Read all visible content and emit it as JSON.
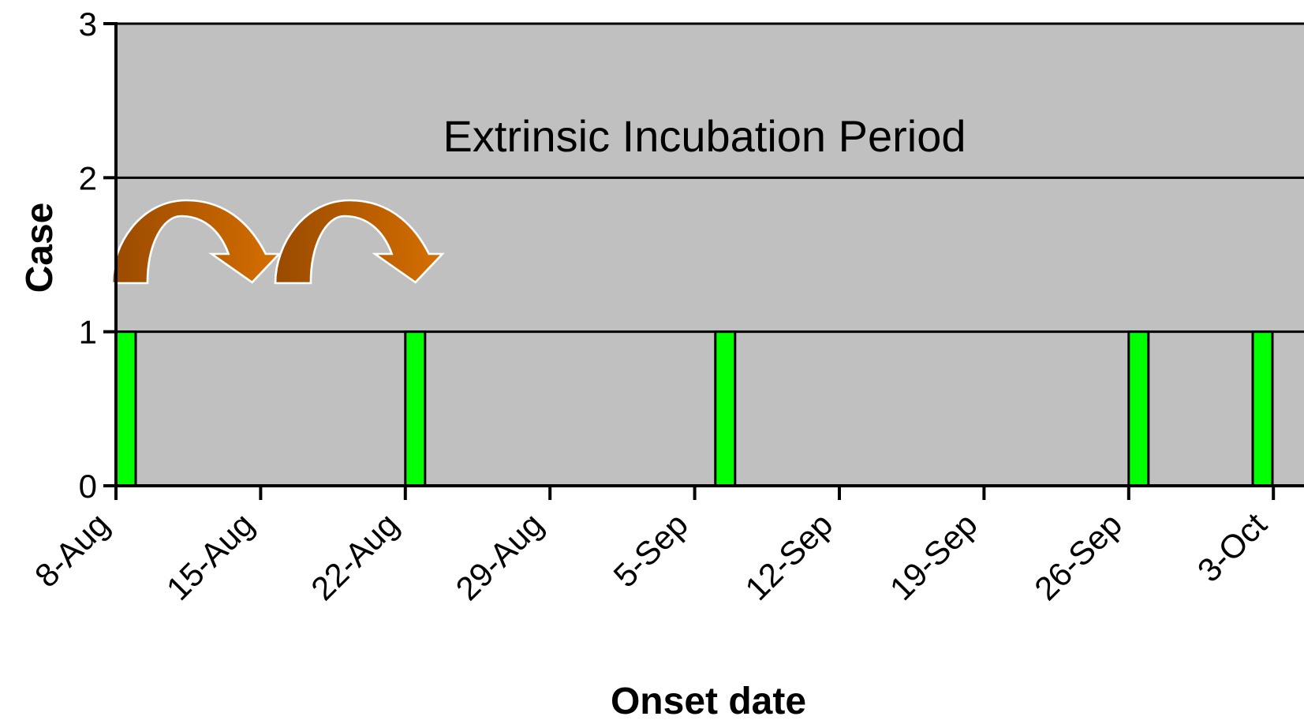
{
  "chart_data": {
    "type": "bar",
    "title": "",
    "xlabel": "Onset date",
    "ylabel": "Case",
    "ylim": [
      0,
      3
    ],
    "y_ticks": [
      0,
      1,
      2,
      3
    ],
    "x_tick_labels": [
      "8-Aug",
      "15-Aug",
      "22-Aug",
      "29-Aug",
      "5-Sep",
      "12-Sep",
      "19-Sep",
      "26-Sep",
      "3-Oct"
    ],
    "grid": "horizontal",
    "plot_background": "#c0c0c0",
    "bar_color": "#00ff00",
    "points": [
      {
        "date": "8-Aug",
        "value": 1
      },
      {
        "date": "22-Aug",
        "value": 1
      },
      {
        "date": "6-Sep",
        "value": 1
      },
      {
        "date": "26-Sep",
        "value": 1
      },
      {
        "date": "2-Oct",
        "value": 1
      }
    ],
    "annotation": "Extrinsic Incubation Period",
    "arrow_color": "#cc6600",
    "arrow_icons": [
      "curved-arrow-icon",
      "curved-arrow-icon"
    ]
  }
}
